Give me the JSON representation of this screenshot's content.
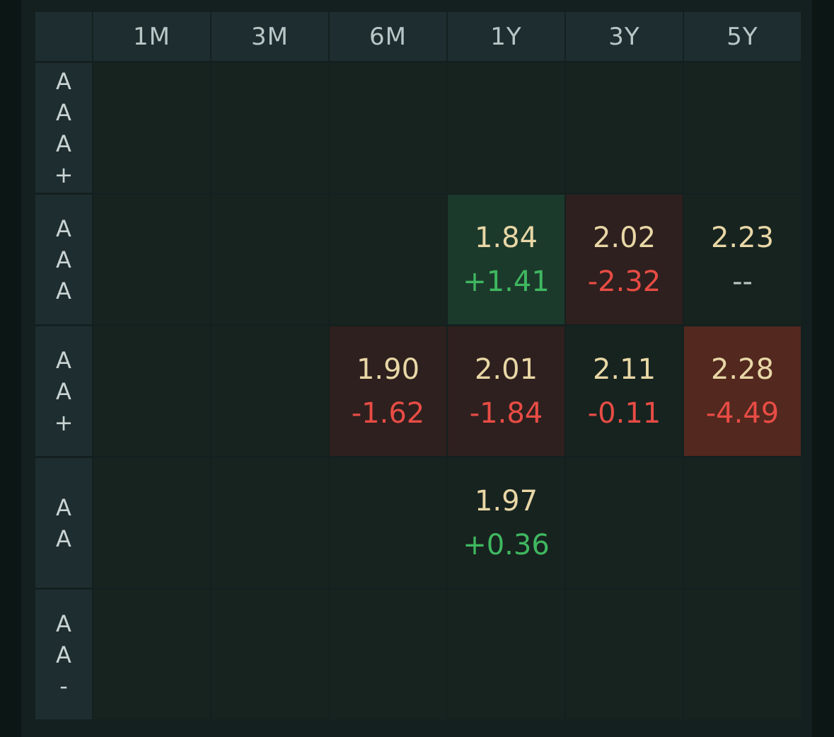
{
  "columns": [
    "1M",
    "3M",
    "6M",
    "1Y",
    "3Y",
    "5Y"
  ],
  "rows": [
    {
      "label": [
        "A",
        "A",
        "A",
        "+"
      ],
      "cells": [
        null,
        null,
        null,
        null,
        null,
        null
      ]
    },
    {
      "label": [
        "A",
        "A",
        "A"
      ],
      "cells": [
        null,
        null,
        null,
        {
          "yield": "1.84",
          "change": "+1.41",
          "trend": "up",
          "bg": "green-bg"
        },
        {
          "yield": "2.02",
          "change": "-2.32",
          "trend": "down",
          "bg": "red-bg"
        },
        {
          "yield": "2.23",
          "change": "--",
          "trend": "flat",
          "bg": ""
        }
      ]
    },
    {
      "label": [
        "A",
        "A",
        "+"
      ],
      "cells": [
        null,
        null,
        {
          "yield": "1.90",
          "change": "-1.62",
          "trend": "down",
          "bg": "red-bg"
        },
        {
          "yield": "2.01",
          "change": "-1.84",
          "trend": "down",
          "bg": "red-bg"
        },
        {
          "yield": "2.11",
          "change": "-0.11",
          "trend": "down",
          "bg": ""
        },
        {
          "yield": "2.28",
          "change": "-4.49",
          "trend": "down",
          "bg": "red-strong-bg"
        }
      ]
    },
    {
      "label": [
        "A",
        "A"
      ],
      "cells": [
        null,
        null,
        null,
        {
          "yield": "1.97",
          "change": "+0.36",
          "trend": "up",
          "bg": ""
        },
        null,
        null
      ]
    },
    {
      "label": [
        "A",
        "A",
        "-"
      ],
      "cells": [
        null,
        null,
        null,
        null,
        null,
        null
      ]
    }
  ]
}
